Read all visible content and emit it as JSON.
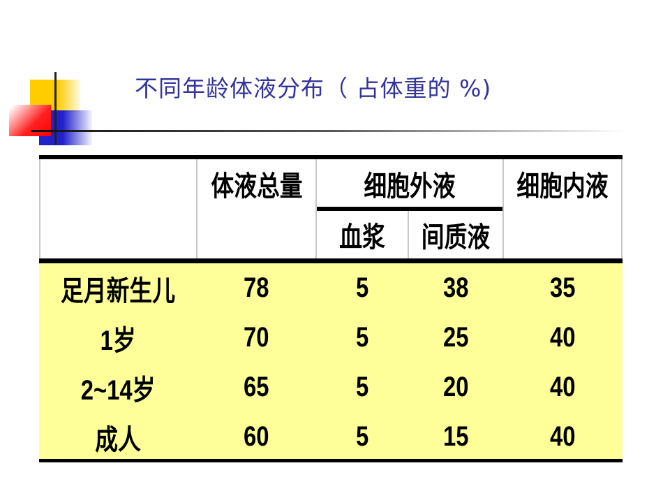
{
  "title": "不同年龄体液分布（ 占体重的 %)",
  "table": {
    "headers": {
      "total": "体液总量",
      "extracellular": "细胞外液",
      "plasma": "血浆",
      "interstitial": "间质液",
      "intracellular": "细胞内液"
    },
    "rows": [
      {
        "age": "足月新生儿",
        "total": "78",
        "plasma": "5",
        "interstitial": "38",
        "intracellular": "35"
      },
      {
        "age": "1岁",
        "total": "70",
        "plasma": "5",
        "interstitial": "25",
        "intracellular": "40"
      },
      {
        "age": "2~14岁",
        "total": "65",
        "plasma": "5",
        "interstitial": "20",
        "intracellular": "40"
      },
      {
        "age": "成人",
        "total": "60",
        "plasma": "5",
        "interstitial": "15",
        "intracellular": "40"
      }
    ],
    "body_color": "#ffff99"
  },
  "colors": {
    "title": "#333399"
  }
}
